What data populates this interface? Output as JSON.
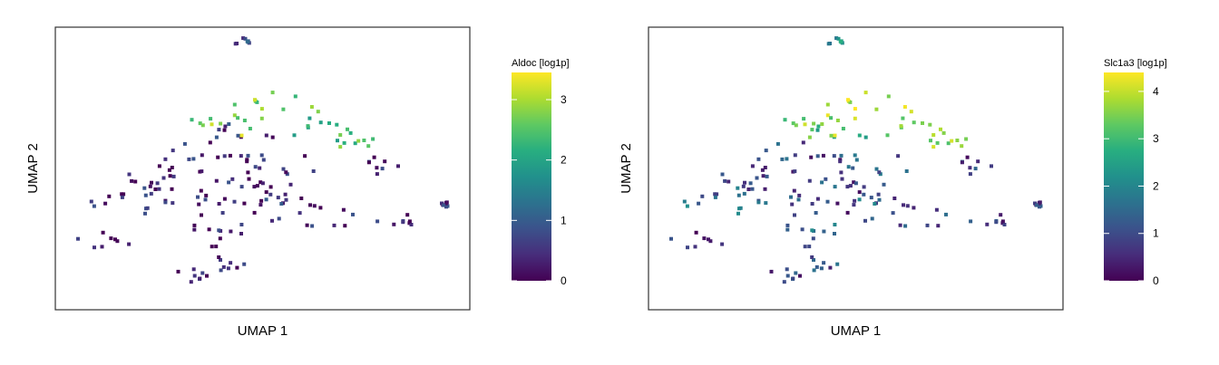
{
  "chart_data": [
    {
      "type": "scatter",
      "xlabel": "UMAP 1",
      "ylabel": "UMAP 2",
      "colorbar": {
        "title": "Aldoc [log1p]",
        "min": 0,
        "max": 3.45,
        "ticks": [
          0,
          1,
          2,
          3
        ],
        "colormap": "viridis"
      },
      "regions": [
        {
          "x": 0.33,
          "y": 0.68,
          "rx": 0.18,
          "ry": 0.16,
          "level": 0.3
        },
        {
          "x": 0.18,
          "y": 0.52,
          "rx": 0.11,
          "ry": 0.06,
          "level": 0.35
        },
        {
          "x": 0.12,
          "y": 0.34,
          "rx": 0.08,
          "ry": 0.05,
          "level": 0.25
        },
        {
          "x": 0.22,
          "y": 0.58,
          "rx": 0.08,
          "ry": 0.07,
          "level": 0.3
        },
        {
          "x": 0.4,
          "y": 0.42,
          "rx": 0.07,
          "ry": 0.12,
          "level": 0.25
        },
        {
          "x": 0.5,
          "y": 0.5,
          "rx": 0.12,
          "ry": 0.1,
          "level": 0.35
        },
        {
          "x": 0.54,
          "y": 0.66,
          "rx": 0.1,
          "ry": 0.14,
          "level": 0.4
        },
        {
          "x": 0.46,
          "y": 0.87,
          "rx": 0.09,
          "ry": 0.07,
          "level": 0.5
        },
        {
          "x": 0.62,
          "y": 0.88,
          "rx": 0.1,
          "ry": 0.07,
          "level": 2.2
        },
        {
          "x": 0.53,
          "y": 1.0,
          "rx": 0.12,
          "ry": 0.08,
          "level": 2.6
        },
        {
          "x": 0.4,
          "y": 0.91,
          "rx": 0.09,
          "ry": 0.07,
          "level": 2.9
        },
        {
          "x": 0.71,
          "y": 0.82,
          "rx": 0.07,
          "ry": 0.05,
          "level": 2.3
        },
        {
          "x": 0.79,
          "y": 0.72,
          "rx": 0.06,
          "ry": 0.05,
          "level": 0.3
        },
        {
          "x": 0.65,
          "y": 0.47,
          "rx": 0.08,
          "ry": 0.07,
          "level": 0.35
        },
        {
          "x": 0.82,
          "y": 0.45,
          "rx": 0.05,
          "ry": 0.05,
          "level": 0.3
        },
        {
          "x": 0.33,
          "y": 0.17,
          "rx": 0.06,
          "ry": 0.04,
          "level": 0.2
        },
        {
          "x": 0.41,
          "y": 0.24,
          "rx": 0.05,
          "ry": 0.05,
          "level": 0.25
        },
        {
          "x": 0.45,
          "y": 1.33,
          "rx": 0.02,
          "ry": 0.02,
          "level": 0.6
        },
        {
          "x": 0.94,
          "y": 0.52,
          "rx": 0.015,
          "ry": 0.015,
          "level": 0.4
        }
      ]
    },
    {
      "type": "scatter",
      "xlabel": "UMAP 1",
      "ylabel": "UMAP 2",
      "colorbar": {
        "title": "Slc1a3 [log1p]",
        "min": 0,
        "max": 4.4,
        "ticks": [
          0,
          1,
          2,
          3,
          4
        ],
        "colormap": "viridis"
      },
      "regions": [
        {
          "x": 0.33,
          "y": 0.68,
          "rx": 0.18,
          "ry": 0.16,
          "level": 0.9
        },
        {
          "x": 0.18,
          "y": 0.52,
          "rx": 0.11,
          "ry": 0.06,
          "level": 1.5
        },
        {
          "x": 0.12,
          "y": 0.34,
          "rx": 0.08,
          "ry": 0.05,
          "level": 0.6
        },
        {
          "x": 0.22,
          "y": 0.58,
          "rx": 0.08,
          "ry": 0.07,
          "level": 1.2
        },
        {
          "x": 0.4,
          "y": 0.42,
          "rx": 0.07,
          "ry": 0.12,
          "level": 1.4
        },
        {
          "x": 0.5,
          "y": 0.5,
          "rx": 0.12,
          "ry": 0.1,
          "level": 0.9
        },
        {
          "x": 0.54,
          "y": 0.66,
          "rx": 0.1,
          "ry": 0.14,
          "level": 1.3
        },
        {
          "x": 0.46,
          "y": 0.87,
          "rx": 0.09,
          "ry": 0.07,
          "level": 3.0
        },
        {
          "x": 0.62,
          "y": 0.88,
          "rx": 0.1,
          "ry": 0.07,
          "level": 3.6
        },
        {
          "x": 0.53,
          "y": 1.0,
          "rx": 0.12,
          "ry": 0.08,
          "level": 3.9
        },
        {
          "x": 0.4,
          "y": 0.91,
          "rx": 0.09,
          "ry": 0.07,
          "level": 3.7
        },
        {
          "x": 0.71,
          "y": 0.82,
          "rx": 0.07,
          "ry": 0.05,
          "level": 3.4
        },
        {
          "x": 0.79,
          "y": 0.72,
          "rx": 0.06,
          "ry": 0.05,
          "level": 0.8
        },
        {
          "x": 0.65,
          "y": 0.47,
          "rx": 0.08,
          "ry": 0.07,
          "level": 0.9
        },
        {
          "x": 0.82,
          "y": 0.45,
          "rx": 0.05,
          "ry": 0.05,
          "level": 0.7
        },
        {
          "x": 0.33,
          "y": 0.17,
          "rx": 0.06,
          "ry": 0.04,
          "level": 0.8
        },
        {
          "x": 0.41,
          "y": 0.24,
          "rx": 0.05,
          "ry": 0.05,
          "level": 1.0
        },
        {
          "x": 0.45,
          "y": 1.33,
          "rx": 0.02,
          "ry": 0.02,
          "level": 2.0
        },
        {
          "x": 0.94,
          "y": 0.52,
          "rx": 0.015,
          "ry": 0.015,
          "level": 0.7
        }
      ]
    }
  ]
}
